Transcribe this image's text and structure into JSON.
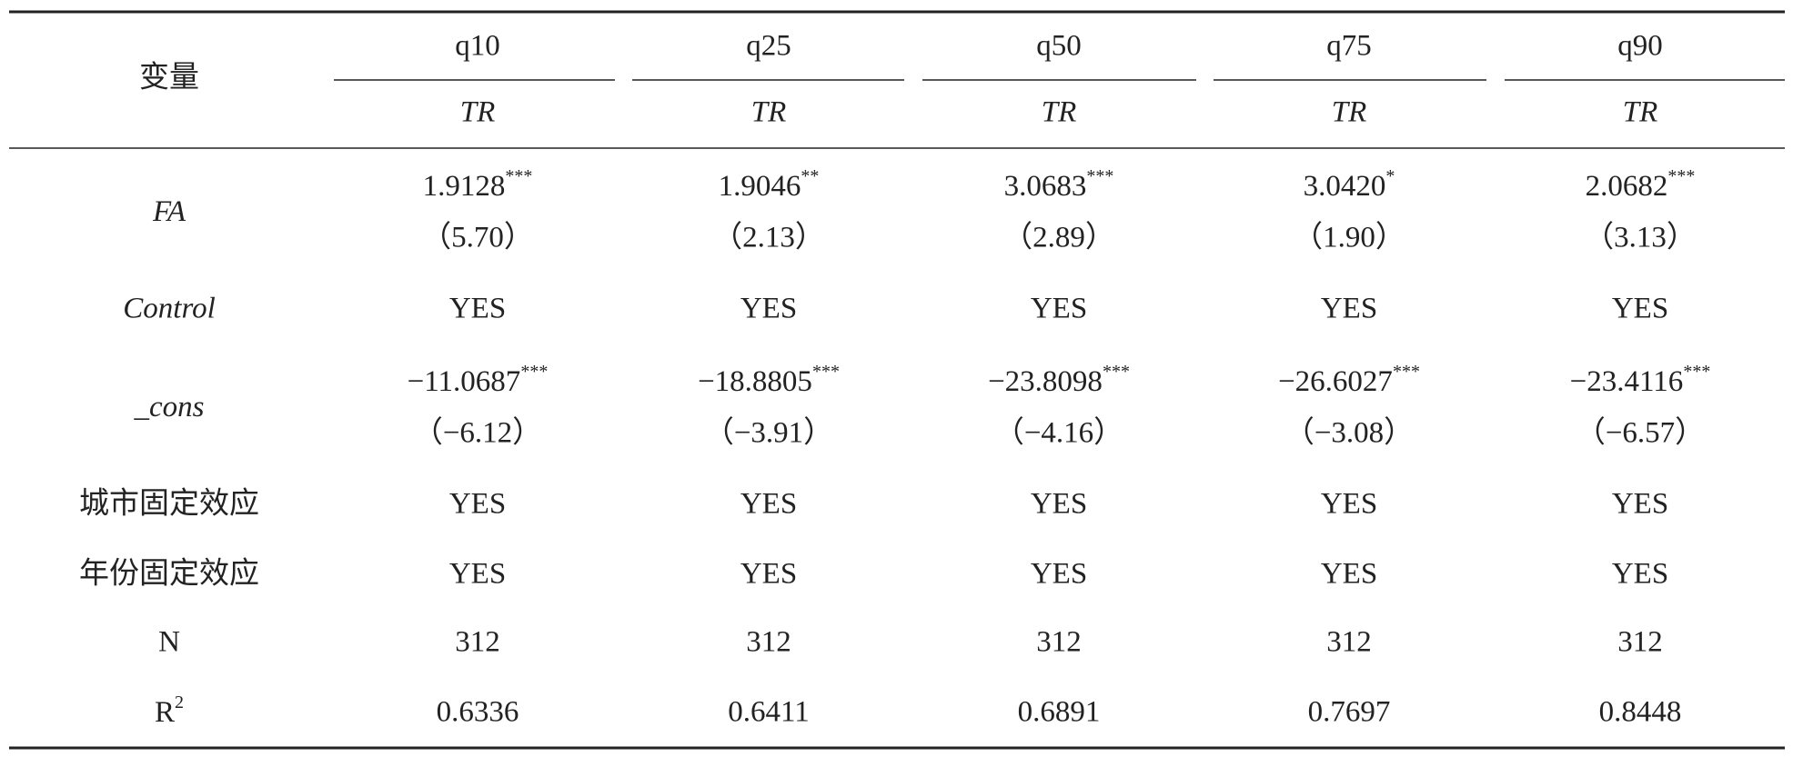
{
  "table": {
    "header": {
      "label": "变量",
      "columns": [
        {
          "name": "q10",
          "dep": "TR"
        },
        {
          "name": "q25",
          "dep": "TR"
        },
        {
          "name": "q50",
          "dep": "TR"
        },
        {
          "name": "q75",
          "dep": "TR"
        },
        {
          "name": "q90",
          "dep": "TR"
        }
      ]
    },
    "rows": [
      {
        "label": "FA",
        "italic": true,
        "cells": [
          {
            "coef": "1.9128",
            "stars": "***",
            "t": "（5.70）"
          },
          {
            "coef": "1.9046",
            "stars": "**",
            "t": "（2.13）"
          },
          {
            "coef": "3.0683",
            "stars": "***",
            "t": "（2.89）"
          },
          {
            "coef": "3.0420",
            "stars": "*",
            "t": "（1.90）"
          },
          {
            "coef": "2.0682",
            "stars": "***",
            "t": "（3.13）"
          }
        ]
      },
      {
        "label": "Control",
        "italic": true,
        "cells": [
          "YES",
          "YES",
          "YES",
          "YES",
          "YES"
        ]
      },
      {
        "label": "_cons",
        "italic": true,
        "cells": [
          {
            "coef": "−11.0687",
            "stars": "***",
            "t": "（−6.12）"
          },
          {
            "coef": "−18.8805",
            "stars": "***",
            "t": "（−3.91）"
          },
          {
            "coef": "−23.8098",
            "stars": "***",
            "t": "（−4.16）"
          },
          {
            "coef": "−26.6027",
            "stars": "***",
            "t": "（−3.08）"
          },
          {
            "coef": "−23.4116",
            "stars": "***",
            "t": "（−6.57）"
          }
        ]
      },
      {
        "label": "城市固定效应",
        "cells": [
          "YES",
          "YES",
          "YES",
          "YES",
          "YES"
        ]
      },
      {
        "label": "年份固定效应",
        "cells": [
          "YES",
          "YES",
          "YES",
          "YES",
          "YES"
        ]
      },
      {
        "label": "N",
        "cells": [
          "312",
          "312",
          "312",
          "312",
          "312"
        ]
      },
      {
        "label": "R",
        "label_sup": "2",
        "cells": [
          "0.6336",
          "0.6411",
          "0.6891",
          "0.7697",
          "0.8448"
        ]
      }
    ]
  }
}
